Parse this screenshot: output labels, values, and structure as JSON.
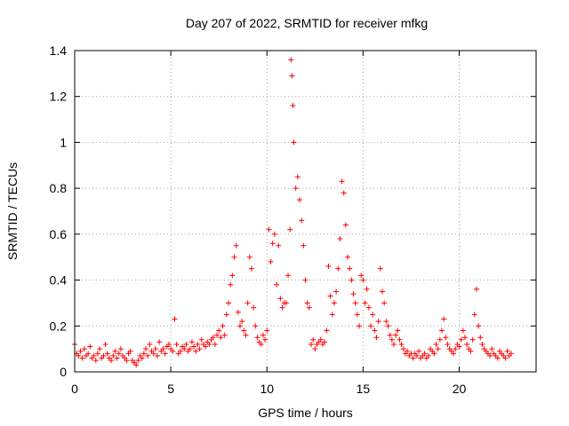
{
  "chart_data": {
    "type": "scatter",
    "title": "Day 207 of 2022, SRMTID for receiver mfkg",
    "xlabel": "GPS time / hours",
    "ylabel": "SRMTID / TECUs",
    "xlim": [
      0,
      24
    ],
    "ylim": [
      0,
      1.4
    ],
    "xticks": [
      0,
      5,
      10,
      15,
      20
    ],
    "yticks": [
      0,
      0.2,
      0.4,
      0.6,
      0.8,
      1,
      1.2,
      1.4
    ],
    "ytick_labels": [
      "0",
      "0.2",
      "0.4",
      "0.6",
      "0.8",
      "1",
      "1.2",
      "1.4"
    ],
    "grid": true,
    "marker": "+",
    "color": "#ff0000",
    "series": [
      {
        "name": "SRMTID",
        "x": [
          0.0,
          0.1,
          0.2,
          0.3,
          0.4,
          0.5,
          0.6,
          0.7,
          0.8,
          0.9,
          1.0,
          1.1,
          1.2,
          1.3,
          1.4,
          1.5,
          1.6,
          1.7,
          1.8,
          1.9,
          2.0,
          2.1,
          2.2,
          2.3,
          2.4,
          2.5,
          2.6,
          2.7,
          2.8,
          2.9,
          3.0,
          3.1,
          3.2,
          3.3,
          3.4,
          3.5,
          3.6,
          3.7,
          3.8,
          3.9,
          4.0,
          4.1,
          4.2,
          4.3,
          4.4,
          4.5,
          4.6,
          4.7,
          4.8,
          4.9,
          5.0,
          5.1,
          5.2,
          5.3,
          5.4,
          5.5,
          5.6,
          5.7,
          5.8,
          5.9,
          6.0,
          6.1,
          6.2,
          6.3,
          6.4,
          6.5,
          6.6,
          6.7,
          6.8,
          6.9,
          7.0,
          7.1,
          7.2,
          7.3,
          7.4,
          7.5,
          7.6,
          7.7,
          7.8,
          7.9,
          8.0,
          8.1,
          8.2,
          8.3,
          8.4,
          8.5,
          8.6,
          8.7,
          8.8,
          8.9,
          9.0,
          9.1,
          9.2,
          9.3,
          9.4,
          9.5,
          9.6,
          9.7,
          9.8,
          9.9,
          10.0,
          10.1,
          10.2,
          10.3,
          10.4,
          10.5,
          10.6,
          10.7,
          10.8,
          10.9,
          11.0,
          11.1,
          11.2,
          11.25,
          11.3,
          11.35,
          11.4,
          11.5,
          11.6,
          11.7,
          11.8,
          11.9,
          12.0,
          12.1,
          12.2,
          12.3,
          12.4,
          12.5,
          12.6,
          12.7,
          12.8,
          12.9,
          13.0,
          13.1,
          13.2,
          13.3,
          13.4,
          13.5,
          13.6,
          13.7,
          13.8,
          13.9,
          14.0,
          14.1,
          14.2,
          14.3,
          14.4,
          14.5,
          14.6,
          14.7,
          14.8,
          14.9,
          15.0,
          15.1,
          15.2,
          15.3,
          15.4,
          15.5,
          15.6,
          15.7,
          15.8,
          15.9,
          16.0,
          16.1,
          16.2,
          16.3,
          16.4,
          16.5,
          16.6,
          16.7,
          16.8,
          16.9,
          17.0,
          17.1,
          17.2,
          17.3,
          17.4,
          17.5,
          17.6,
          17.7,
          17.8,
          17.9,
          18.0,
          18.1,
          18.2,
          18.3,
          18.4,
          18.5,
          18.6,
          18.7,
          18.8,
          18.9,
          19.0,
          19.1,
          19.2,
          19.3,
          19.4,
          19.5,
          19.6,
          19.7,
          19.8,
          19.9,
          20.0,
          20.1,
          20.2,
          20.3,
          20.4,
          20.5,
          20.6,
          20.7,
          20.8,
          20.9,
          21.0,
          21.1,
          21.2,
          21.3,
          21.4,
          21.5,
          21.6,
          21.7,
          21.8,
          21.9,
          22.0,
          22.1,
          22.2,
          22.3,
          22.4,
          22.5,
          22.6,
          22.7
        ],
        "y": [
          0.12,
          0.08,
          0.07,
          0.09,
          0.06,
          0.1,
          0.07,
          0.08,
          0.11,
          0.06,
          0.07,
          0.05,
          0.08,
          0.1,
          0.06,
          0.07,
          0.12,
          0.08,
          0.06,
          0.05,
          0.07,
          0.09,
          0.06,
          0.08,
          0.1,
          0.07,
          0.06,
          0.05,
          0.08,
          0.09,
          0.05,
          0.04,
          0.03,
          0.05,
          0.07,
          0.06,
          0.08,
          0.1,
          0.07,
          0.12,
          0.09,
          0.08,
          0.1,
          0.07,
          0.13,
          0.09,
          0.1,
          0.08,
          0.11,
          0.12,
          0.1,
          0.09,
          0.23,
          0.12,
          0.08,
          0.09,
          0.11,
          0.1,
          0.12,
          0.09,
          0.1,
          0.13,
          0.11,
          0.09,
          0.12,
          0.1,
          0.14,
          0.12,
          0.11,
          0.13,
          0.12,
          0.14,
          0.15,
          0.12,
          0.16,
          0.18,
          0.15,
          0.2,
          0.16,
          0.25,
          0.3,
          0.38,
          0.42,
          0.5,
          0.55,
          0.26,
          0.2,
          0.22,
          0.18,
          0.16,
          0.3,
          0.5,
          0.45,
          0.28,
          0.2,
          0.15,
          0.13,
          0.12,
          0.16,
          0.14,
          0.18,
          0.62,
          0.48,
          0.56,
          0.6,
          0.38,
          0.55,
          0.32,
          0.28,
          0.3,
          0.3,
          0.42,
          0.62,
          1.36,
          1.29,
          1.16,
          1.0,
          0.8,
          0.85,
          0.75,
          0.66,
          0.55,
          0.4,
          0.3,
          0.28,
          0.12,
          0.14,
          0.1,
          0.12,
          0.13,
          0.14,
          0.12,
          0.13,
          0.18,
          0.46,
          0.33,
          0.25,
          0.3,
          0.35,
          0.45,
          0.58,
          0.83,
          0.78,
          0.64,
          0.5,
          0.45,
          0.4,
          0.34,
          0.3,
          0.25,
          0.2,
          0.42,
          0.4,
          0.3,
          0.36,
          0.28,
          0.2,
          0.25,
          0.18,
          0.15,
          0.22,
          0.45,
          0.35,
          0.3,
          0.22,
          0.2,
          0.16,
          0.14,
          0.12,
          0.16,
          0.18,
          0.14,
          0.12,
          0.1,
          0.08,
          0.09,
          0.07,
          0.08,
          0.06,
          0.08,
          0.07,
          0.09,
          0.06,
          0.07,
          0.08,
          0.06,
          0.07,
          0.1,
          0.09,
          0.08,
          0.12,
          0.1,
          0.14,
          0.18,
          0.23,
          0.15,
          0.12,
          0.1,
          0.09,
          0.08,
          0.1,
          0.12,
          0.11,
          0.14,
          0.18,
          0.15,
          0.12,
          0.1,
          0.09,
          0.14,
          0.25,
          0.36,
          0.2,
          0.15,
          0.12,
          0.1,
          0.09,
          0.08,
          0.07,
          0.1,
          0.08,
          0.07,
          0.06,
          0.09,
          0.08,
          0.07,
          0.06,
          0.09,
          0.07,
          0.08
        ]
      }
    ]
  }
}
